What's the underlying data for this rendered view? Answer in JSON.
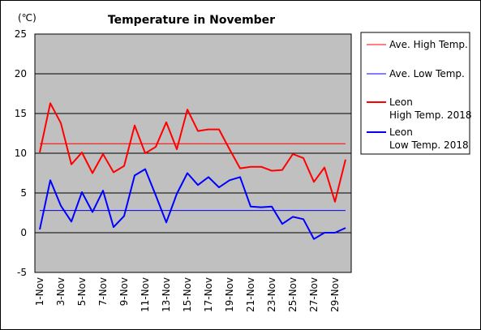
{
  "chart_data": {
    "type": "line",
    "title": "Temperature in November",
    "unit_label": "(℃)",
    "ylim": [
      -5,
      25
    ],
    "yticks": [
      25,
      20,
      15,
      10,
      5,
      0,
      -5
    ],
    "x": [
      "1-Nov",
      "2-Nov",
      "3-Nov",
      "4-Nov",
      "5-Nov",
      "6-Nov",
      "7-Nov",
      "8-Nov",
      "9-Nov",
      "10-Nov",
      "11-Nov",
      "12-Nov",
      "13-Nov",
      "14-Nov",
      "15-Nov",
      "16-Nov",
      "17-Nov",
      "18-Nov",
      "19-Nov",
      "20-Nov",
      "21-Nov",
      "22-Nov",
      "23-Nov",
      "24-Nov",
      "25-Nov",
      "26-Nov",
      "27-Nov",
      "28-Nov",
      "29-Nov",
      "30-Nov"
    ],
    "xtick_labels": [
      "1-Nov",
      "3-Nov",
      "5-Nov",
      "7-Nov",
      "9-Nov",
      "11-Nov",
      "13-Nov",
      "15-Nov",
      "17-Nov",
      "19-Nov",
      "21-Nov",
      "23-Nov",
      "25-Nov",
      "27-Nov",
      "29-Nov"
    ],
    "grid": true,
    "legend_position": "right",
    "series": [
      {
        "name": "Ave. High Temp.",
        "color": "#ff0000",
        "width": 1,
        "constant": 11.2
      },
      {
        "name": "Ave. Low Temp.",
        "color": "#0000ff",
        "width": 1,
        "constant": 2.8
      },
      {
        "name": "Leon High Temp. 2018",
        "legend_lines": [
          "Leon",
          "High Temp. 2018"
        ],
        "color": "#ff0000",
        "width": 2,
        "values": [
          10.1,
          16.3,
          13.8,
          8.6,
          10.1,
          7.5,
          9.9,
          7.6,
          8.4,
          13.5,
          10.0,
          10.8,
          13.9,
          10.5,
          15.5,
          12.8,
          13.0,
          13.0,
          10.5,
          8.1,
          8.3,
          8.3,
          7.8,
          7.9,
          9.9,
          9.4,
          6.4,
          8.2,
          3.9,
          9.2
        ]
      },
      {
        "name": "Leon Low Temp. 2018",
        "legend_lines": [
          "Leon",
          "Low Temp. 2018"
        ],
        "color": "#0000ff",
        "width": 2,
        "values": [
          0.4,
          6.6,
          3.4,
          1.4,
          5.1,
          2.6,
          5.3,
          0.7,
          2.1,
          7.2,
          8.0,
          4.7,
          1.3,
          4.9,
          7.5,
          6.0,
          7.0,
          5.7,
          6.6,
          7.0,
          3.3,
          3.2,
          3.3,
          1.1,
          2.0,
          1.7,
          -0.8,
          0.0,
          0.0,
          0.6
        ]
      }
    ]
  }
}
